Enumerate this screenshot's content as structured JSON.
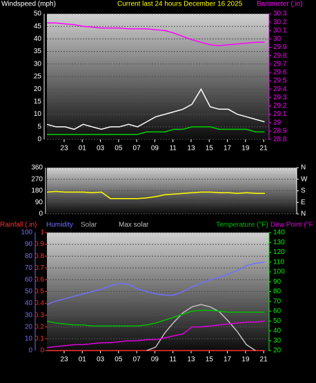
{
  "chart_data": [
    {
      "type": "line",
      "title": "Current last 24 hours December 16 2025",
      "ylabel": "Windspeed (mph)",
      "y2label": "Barometer (.in)",
      "title_color": "#ffff00",
      "ycolor": "#ffffff",
      "y2color": "#ff00ff",
      "x": [
        0,
        1,
        2,
        3,
        4,
        5,
        6,
        7,
        8,
        9,
        10,
        11,
        12,
        13,
        14,
        15,
        16,
        17,
        18,
        19,
        20,
        21,
        22,
        23,
        24
      ],
      "xlim": [
        0,
        24.5
      ],
      "xticks": [
        {
          "value": 1.9,
          "label": "23"
        },
        {
          "value": 3.9,
          "label": "01"
        },
        {
          "value": 5.9,
          "label": "03"
        },
        {
          "value": 7.9,
          "label": "05"
        },
        {
          "value": 9.9,
          "label": "07"
        },
        {
          "value": 11.9,
          "label": "09"
        },
        {
          "value": 13.9,
          "label": "11"
        },
        {
          "value": 15.9,
          "label": "13"
        },
        {
          "value": 17.9,
          "label": "15"
        },
        {
          "value": 19.9,
          "label": "17"
        },
        {
          "value": 21.9,
          "label": "19"
        },
        {
          "value": 23.9,
          "label": "21"
        }
      ],
      "ylim": [
        0,
        50
      ],
      "yticks": [
        0,
        5,
        10,
        15,
        20,
        25,
        30,
        35,
        40,
        45,
        50
      ],
      "y2lim": [
        28.8,
        30.3
      ],
      "y2ticks": [
        28.8,
        28.9,
        29,
        29.1,
        29.2,
        29.3,
        29.4,
        29.5,
        29.6,
        29.7,
        29.8,
        29.9,
        30,
        30.1,
        30.2,
        30.3
      ],
      "grid": true,
      "series": [
        {
          "color": "#ffffff",
          "values": [
            6,
            5,
            5,
            4,
            6,
            5,
            4,
            5,
            5,
            6,
            5,
            7,
            9,
            10,
            11,
            12,
            14,
            20,
            13,
            12,
            12,
            10,
            9,
            8,
            7
          ]
        },
        {
          "color": "#00d000",
          "values": [
            2,
            2,
            2,
            2,
            2,
            2,
            2,
            2,
            2,
            2,
            2,
            3,
            3,
            3,
            4,
            4,
            5,
            5,
            5,
            4,
            4,
            4,
            4,
            3,
            3
          ]
        },
        {
          "color": "#ff00ff",
          "axis": "y2",
          "values": [
            30.19,
            30.19,
            30.18,
            30.17,
            30.15,
            30.14,
            30.13,
            30.13,
            30.13,
            30.12,
            30.12,
            30.12,
            30.11,
            30.1,
            30.07,
            30.03,
            29.99,
            29.96,
            29.93,
            29.92,
            29.93,
            29.94,
            29.95,
            29.96,
            29.96
          ]
        }
      ]
    },
    {
      "type": "line",
      "ycolor": "#ffffff",
      "y2color": "#ffffff",
      "x": [
        0,
        1,
        2,
        3,
        4,
        5,
        6,
        7,
        8,
        9,
        10,
        11,
        12,
        13,
        14,
        15,
        16,
        17,
        18,
        19,
        20,
        21,
        22,
        23,
        24
      ],
      "xlim": [
        0,
        27.5
      ],
      "ylim": [
        0,
        360
      ],
      "yticks": [
        0,
        90,
        180,
        270,
        360
      ],
      "y2lim": [
        0,
        360
      ],
      "y2ticks": [
        {
          "value": 360,
          "label": "N"
        },
        {
          "value": 270,
          "label": "W"
        },
        {
          "value": 180,
          "label": "S"
        },
        {
          "value": 90,
          "label": "E"
        },
        {
          "value": 0,
          "label": "N"
        }
      ],
      "grid": true,
      "series": [
        {
          "color": "#ffff00",
          "values": [
            170,
            175,
            170,
            170,
            170,
            165,
            170,
            120,
            120,
            120,
            120,
            125,
            135,
            150,
            155,
            160,
            165,
            170,
            170,
            165,
            165,
            160,
            165,
            160,
            160
          ]
        }
      ]
    },
    {
      "type": "line",
      "ycolor": "#7070ff",
      "y2color": "#00ff00",
      "y3color": "#ff3030",
      "x": [
        0,
        1,
        2,
        3,
        4,
        5,
        6,
        7,
        8,
        9,
        10,
        11,
        12,
        13,
        14,
        15,
        16,
        17,
        18,
        19,
        20,
        21,
        22,
        23,
        24
      ],
      "xlim": [
        0,
        24.5
      ],
      "xticks": [
        {
          "value": 1.9,
          "label": "23"
        },
        {
          "value": 3.9,
          "label": "01"
        },
        {
          "value": 5.9,
          "label": "03"
        },
        {
          "value": 7.9,
          "label": "05"
        },
        {
          "value": 9.9,
          "label": "07"
        },
        {
          "value": 11.9,
          "label": "09"
        },
        {
          "value": 13.9,
          "label": "11"
        },
        {
          "value": 15.9,
          "label": "13"
        },
        {
          "value": 17.9,
          "label": "15"
        },
        {
          "value": 19.9,
          "label": "17"
        },
        {
          "value": 21.9,
          "label": "19"
        },
        {
          "value": 23.9,
          "label": "21"
        }
      ],
      "ylim": [
        0,
        100
      ],
      "yticks": [
        0,
        10,
        20,
        30,
        40,
        50,
        60,
        70,
        80,
        90,
        100
      ],
      "y2lim": [
        20,
        140
      ],
      "y2ticks": [
        20,
        30,
        40,
        50,
        60,
        70,
        80,
        90,
        100,
        110,
        120,
        130,
        140
      ],
      "y3lim": [
        0,
        1
      ],
      "y3ticks": [
        0,
        0.1,
        0.2,
        0.3,
        0.4,
        0.5,
        0.6,
        0.7,
        0.8,
        0.9,
        1
      ],
      "grid": true,
      "annotations": [
        {
          "text": "Solar",
          "color": "#b0b0b0"
        }
      ],
      "series": [
        {
          "name": "Rainfall (.in)",
          "color": "#ff3030",
          "axis": "y3",
          "values": [
            0,
            0,
            0,
            0,
            0,
            0,
            0,
            0,
            0,
            0,
            0,
            0,
            0,
            0,
            0,
            0,
            0,
            0,
            0,
            0,
            0,
            0,
            0,
            0,
            0
          ]
        },
        {
          "name": "Humidity",
          "color": "#7070ff",
          "values": [
            39,
            42,
            44,
            46,
            48,
            50,
            52,
            55,
            57,
            56,
            52,
            50,
            48,
            47,
            47,
            50,
            54,
            57,
            60,
            62,
            65,
            68,
            72,
            74,
            75
          ]
        },
        {
          "name": "Max solar",
          "color": "#c0c0c0",
          "values": [
            null,
            null,
            null,
            null,
            null,
            null,
            null,
            null,
            null,
            null,
            null,
            0,
            3,
            15,
            24,
            32,
            37,
            39,
            37,
            33,
            25,
            16,
            5,
            0,
            null
          ]
        },
        {
          "name": "Temperature (°F)",
          "color": "#00c000",
          "axis": "y2",
          "values": [
            50,
            48,
            47,
            46,
            46,
            45,
            45,
            45,
            45,
            45,
            45,
            46,
            48,
            51,
            54,
            57,
            60,
            61,
            61,
            60,
            59,
            59,
            59,
            59,
            59
          ]
        },
        {
          "name": "Dew Point (°F",
          "color": "#e000e0",
          "axis": "y2",
          "values": [
            23,
            24,
            25,
            26,
            26,
            27,
            28,
            28,
            29,
            30,
            30,
            31,
            31,
            33,
            35,
            37,
            44,
            44,
            45,
            46,
            47,
            48,
            49,
            49,
            50
          ]
        }
      ]
    }
  ]
}
